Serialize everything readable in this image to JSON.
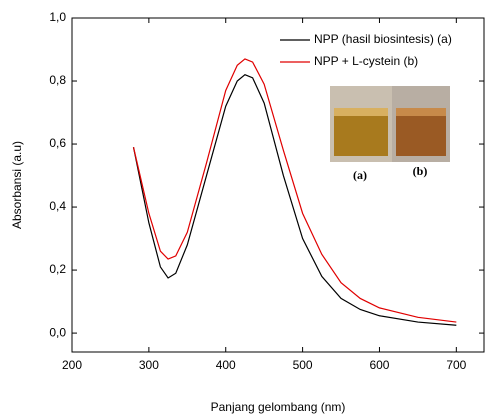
{
  "chart_data": {
    "type": "line",
    "x_label": "Panjang gelombang (nm)",
    "y_label": "Absorbansi (a.u)",
    "x": [
      280,
      300,
      315,
      325,
      335,
      350,
      375,
      400,
      415,
      425,
      435,
      450,
      475,
      500,
      525,
      550,
      575,
      600,
      650,
      700
    ],
    "series": [
      {
        "name": "NPP (hasil biosintesis) (a)",
        "color": "#000000",
        "values": [
          0.59,
          0.35,
          0.21,
          0.175,
          0.19,
          0.28,
          0.5,
          0.72,
          0.8,
          0.82,
          0.81,
          0.73,
          0.5,
          0.3,
          0.18,
          0.11,
          0.075,
          0.055,
          0.035,
          0.025
        ]
      },
      {
        "name": "NPP + L-cystein (b)",
        "color": "#e00000",
        "values": [
          0.59,
          0.38,
          0.26,
          0.235,
          0.245,
          0.32,
          0.54,
          0.77,
          0.85,
          0.87,
          0.86,
          0.79,
          0.58,
          0.38,
          0.25,
          0.16,
          0.11,
          0.08,
          0.05,
          0.035
        ]
      }
    ],
    "xlim": [
      200,
      736
    ],
    "xticks": [
      200,
      300,
      400,
      500,
      600,
      700
    ],
    "ylim": [
      -0.06,
      1.0
    ],
    "yticks": [
      {
        "value": 0.0,
        "label": "0,0"
      },
      {
        "value": 0.2,
        "label": "0,2"
      },
      {
        "value": 0.4,
        "label": "0,4"
      },
      {
        "value": 0.6,
        "label": "0,6"
      },
      {
        "value": 0.8,
        "label": "0,8"
      },
      {
        "value": 1.0,
        "label": "1,0"
      }
    ],
    "legend": "upper right",
    "inset_labels": [
      "(a)",
      "(b)"
    ]
  }
}
